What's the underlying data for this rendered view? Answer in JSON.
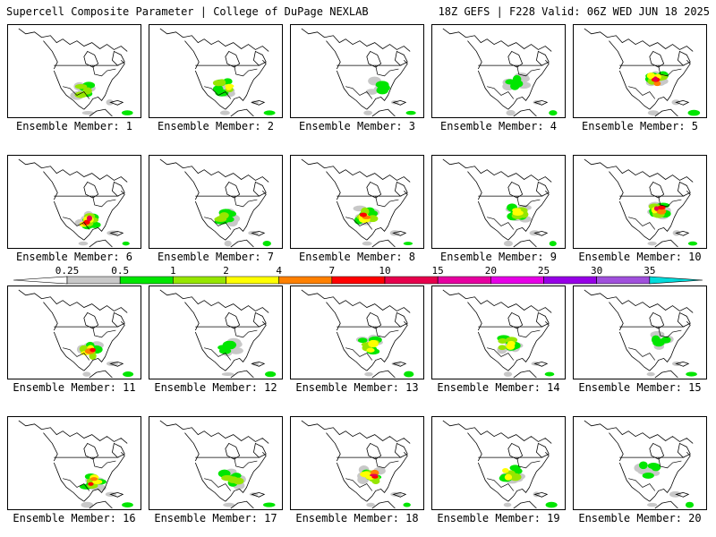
{
  "header": {
    "title": "Supercell Composite Parameter | College of DuPage NEXLAB",
    "run_info": "18Z GEFS | F228 Valid: 06Z WED JUN 18 2025"
  },
  "caption_prefix": "Ensemble Member: ",
  "members": [
    {
      "label": "Ensemble Member: 1",
      "number": 1,
      "max_level": 3
    },
    {
      "label": "Ensemble Member: 2",
      "number": 2,
      "max_level": 4
    },
    {
      "label": "Ensemble Member: 3",
      "number": 3,
      "max_level": 2
    },
    {
      "label": "Ensemble Member: 4",
      "number": 4,
      "max_level": 2
    },
    {
      "label": "Ensemble Member: 5",
      "number": 5,
      "max_level": 7
    },
    {
      "label": "Ensemble Member: 6",
      "number": 6,
      "max_level": 7
    },
    {
      "label": "Ensemble Member: 7",
      "number": 7,
      "max_level": 3
    },
    {
      "label": "Ensemble Member: 8",
      "number": 8,
      "max_level": 6
    },
    {
      "label": "Ensemble Member: 9",
      "number": 9,
      "max_level": 4
    },
    {
      "label": "Ensemble Member: 10",
      "number": 10,
      "max_level": 7
    },
    {
      "label": "Ensemble Member: 11",
      "number": 11,
      "max_level": 6
    },
    {
      "label": "Ensemble Member: 12",
      "number": 12,
      "max_level": 2
    },
    {
      "label": "Ensemble Member: 13",
      "number": 13,
      "max_level": 4
    },
    {
      "label": "Ensemble Member: 14",
      "number": 14,
      "max_level": 4
    },
    {
      "label": "Ensemble Member: 15",
      "number": 15,
      "max_level": 2
    },
    {
      "label": "Ensemble Member: 16",
      "number": 16,
      "max_level": 6
    },
    {
      "label": "Ensemble Member: 17",
      "number": 17,
      "max_level": 3
    },
    {
      "label": "Ensemble Member: 18",
      "number": 18,
      "max_level": 7
    },
    {
      "label": "Ensemble Member: 19",
      "number": 19,
      "max_level": 4
    },
    {
      "label": "Ensemble Member: 20",
      "number": 20,
      "max_level": 2
    }
  ],
  "legend": {
    "thresholds": [
      "0.25",
      "0.5",
      "1",
      "2",
      "4",
      "7",
      "10",
      "15",
      "20",
      "25",
      "30",
      "35"
    ],
    "colors": [
      "#c8c8c8",
      "#00e600",
      "#96e600",
      "#ffff00",
      "#ff8000",
      "#ff0000",
      "#e6004c",
      "#e600a0",
      "#e600e6",
      "#9600e6",
      "#a050dc",
      "#00dcdc"
    ]
  }
}
